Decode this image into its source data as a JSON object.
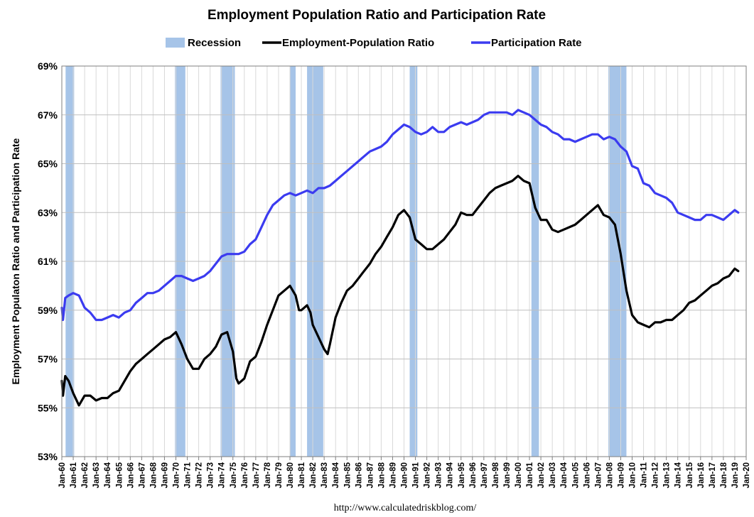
{
  "chart_data": {
    "type": "line",
    "title": "Employment Population Ratio and Participation Rate",
    "ylabel": "Employment Populaton Ratio and Participation Rate",
    "xlabel": "",
    "source": "http://www.calculatedriskblog.com/",
    "ylim": [
      53,
      69
    ],
    "y_ticks": [
      53,
      55,
      57,
      59,
      61,
      63,
      65,
      67,
      69
    ],
    "y_tick_suffix": "%",
    "xlim": [
      1960,
      2020
    ],
    "x_tick_labels": [
      "Jan-60",
      "Jan-61",
      "Jan-62",
      "Jan-63",
      "Jan-64",
      "Jan-65",
      "Jan-66",
      "Jan-67",
      "Jan-68",
      "Jan-69",
      "Jan-70",
      "Jan-71",
      "Jan-72",
      "Jan-73",
      "Jan-74",
      "Jan-75",
      "Jan-76",
      "Jan-77",
      "Jan-78",
      "Jan-79",
      "Jan-80",
      "Jan-81",
      "Jan-82",
      "Jan-83",
      "Jan-84",
      "Jan-85",
      "Jan-86",
      "Jan-87",
      "Jan-88",
      "Jan-89",
      "Jan-90",
      "Jan-91",
      "Jan-92",
      "Jan-93",
      "Jan-94",
      "Jan-95",
      "Jan-96",
      "Jan-97",
      "Jan-98",
      "Jan-99",
      "Jan-00",
      "Jan-01",
      "Jan-02",
      "Jan-03",
      "Jan-04",
      "Jan-05",
      "Jan-06",
      "Jan-07",
      "Jan-08",
      "Jan-09",
      "Jan-10",
      "Jan-11",
      "Jan-12",
      "Jan-13",
      "Jan-14",
      "Jan-15",
      "Jan-16",
      "Jan-17",
      "Jan-18",
      "Jan-19",
      "Jan-20"
    ],
    "grid": true,
    "legend_position": "top-center",
    "legend": [
      {
        "name": "Recession",
        "kind": "band",
        "color": "#a6c4e8"
      },
      {
        "name": "Employment-Population Ratio",
        "kind": "line",
        "color": "#000000"
      },
      {
        "name": "Participation Rate",
        "kind": "line",
        "color": "#3b3bf0"
      }
    ],
    "recessions": [
      [
        1960.33,
        1961.08
      ],
      [
        1969.92,
        1970.83
      ],
      [
        1973.92,
        1975.17
      ],
      [
        1980.0,
        1980.5
      ],
      [
        1981.5,
        1982.92
      ],
      [
        1990.5,
        1991.17
      ],
      [
        2001.17,
        2001.83
      ],
      [
        2007.92,
        2009.5
      ]
    ],
    "series": [
      {
        "name": "Participation Rate",
        "color": "#3b3bf0",
        "points": [
          [
            1960.0,
            59.1
          ],
          [
            1960.1,
            58.6
          ],
          [
            1960.3,
            59.5
          ],
          [
            1960.6,
            59.6
          ],
          [
            1961.0,
            59.7
          ],
          [
            1961.5,
            59.6
          ],
          [
            1962.0,
            59.1
          ],
          [
            1962.5,
            58.9
          ],
          [
            1963.0,
            58.6
          ],
          [
            1963.5,
            58.6
          ],
          [
            1964.0,
            58.7
          ],
          [
            1964.5,
            58.8
          ],
          [
            1965.0,
            58.7
          ],
          [
            1965.5,
            58.9
          ],
          [
            1966.0,
            59.0
          ],
          [
            1966.5,
            59.3
          ],
          [
            1967.0,
            59.5
          ],
          [
            1967.5,
            59.7
          ],
          [
            1968.0,
            59.7
          ],
          [
            1968.5,
            59.8
          ],
          [
            1969.0,
            60.0
          ],
          [
            1969.5,
            60.2
          ],
          [
            1970.0,
            60.4
          ],
          [
            1970.5,
            60.4
          ],
          [
            1971.0,
            60.3
          ],
          [
            1971.5,
            60.2
          ],
          [
            1972.0,
            60.3
          ],
          [
            1972.5,
            60.4
          ],
          [
            1973.0,
            60.6
          ],
          [
            1973.5,
            60.9
          ],
          [
            1974.0,
            61.2
          ],
          [
            1974.5,
            61.3
          ],
          [
            1975.0,
            61.3
          ],
          [
            1975.5,
            61.3
          ],
          [
            1976.0,
            61.4
          ],
          [
            1976.5,
            61.7
          ],
          [
            1977.0,
            61.9
          ],
          [
            1977.5,
            62.4
          ],
          [
            1978.0,
            62.9
          ],
          [
            1978.5,
            63.3
          ],
          [
            1979.0,
            63.5
          ],
          [
            1979.5,
            63.7
          ],
          [
            1980.0,
            63.8
          ],
          [
            1980.5,
            63.7
          ],
          [
            1981.0,
            63.8
          ],
          [
            1981.5,
            63.9
          ],
          [
            1982.0,
            63.8
          ],
          [
            1982.5,
            64.0
          ],
          [
            1983.0,
            64.0
          ],
          [
            1983.5,
            64.1
          ],
          [
            1984.0,
            64.3
          ],
          [
            1984.5,
            64.5
          ],
          [
            1985.0,
            64.7
          ],
          [
            1985.5,
            64.9
          ],
          [
            1986.0,
            65.1
          ],
          [
            1986.5,
            65.3
          ],
          [
            1987.0,
            65.5
          ],
          [
            1987.5,
            65.6
          ],
          [
            1988.0,
            65.7
          ],
          [
            1988.5,
            65.9
          ],
          [
            1989.0,
            66.2
          ],
          [
            1989.5,
            66.4
          ],
          [
            1990.0,
            66.6
          ],
          [
            1990.5,
            66.5
          ],
          [
            1991.0,
            66.3
          ],
          [
            1991.5,
            66.2
          ],
          [
            1992.0,
            66.3
          ],
          [
            1992.5,
            66.5
          ],
          [
            1993.0,
            66.3
          ],
          [
            1993.5,
            66.3
          ],
          [
            1994.0,
            66.5
          ],
          [
            1994.5,
            66.6
          ],
          [
            1995.0,
            66.7
          ],
          [
            1995.5,
            66.6
          ],
          [
            1996.0,
            66.7
          ],
          [
            1996.5,
            66.8
          ],
          [
            1997.0,
            67.0
          ],
          [
            1997.5,
            67.1
          ],
          [
            1998.0,
            67.1
          ],
          [
            1998.5,
            67.1
          ],
          [
            1999.0,
            67.1
          ],
          [
            1999.5,
            67.0
          ],
          [
            2000.0,
            67.2
          ],
          [
            2000.5,
            67.1
          ],
          [
            2001.0,
            67.0
          ],
          [
            2001.5,
            66.8
          ],
          [
            2002.0,
            66.6
          ],
          [
            2002.5,
            66.5
          ],
          [
            2003.0,
            66.3
          ],
          [
            2003.5,
            66.2
          ],
          [
            2004.0,
            66.0
          ],
          [
            2004.5,
            66.0
          ],
          [
            2005.0,
            65.9
          ],
          [
            2005.5,
            66.0
          ],
          [
            2006.0,
            66.1
          ],
          [
            2006.5,
            66.2
          ],
          [
            2007.0,
            66.2
          ],
          [
            2007.5,
            66.0
          ],
          [
            2008.0,
            66.1
          ],
          [
            2008.5,
            66.0
          ],
          [
            2009.0,
            65.7
          ],
          [
            2009.5,
            65.5
          ],
          [
            2010.0,
            64.9
          ],
          [
            2010.5,
            64.8
          ],
          [
            2011.0,
            64.2
          ],
          [
            2011.5,
            64.1
          ],
          [
            2012.0,
            63.8
          ],
          [
            2012.5,
            63.7
          ],
          [
            2013.0,
            63.6
          ],
          [
            2013.5,
            63.4
          ],
          [
            2014.0,
            63.0
          ],
          [
            2014.5,
            62.9
          ],
          [
            2015.0,
            62.8
          ],
          [
            2015.5,
            62.7
          ],
          [
            2016.0,
            62.7
          ],
          [
            2016.5,
            62.9
          ],
          [
            2017.0,
            62.9
          ],
          [
            2017.5,
            62.8
          ],
          [
            2018.0,
            62.7
          ],
          [
            2018.5,
            62.9
          ],
          [
            2019.0,
            63.1
          ],
          [
            2019.3,
            63.0
          ]
        ]
      },
      {
        "name": "Employment-Population Ratio",
        "color": "#000000",
        "points": [
          [
            1960.0,
            56.1
          ],
          [
            1960.1,
            55.5
          ],
          [
            1960.3,
            56.3
          ],
          [
            1960.6,
            56.1
          ],
          [
            1961.0,
            55.6
          ],
          [
            1961.5,
            55.1
          ],
          [
            1962.0,
            55.5
          ],
          [
            1962.5,
            55.5
          ],
          [
            1963.0,
            55.3
          ],
          [
            1963.5,
            55.4
          ],
          [
            1964.0,
            55.4
          ],
          [
            1964.5,
            55.6
          ],
          [
            1965.0,
            55.7
          ],
          [
            1965.5,
            56.1
          ],
          [
            1966.0,
            56.5
          ],
          [
            1966.5,
            56.8
          ],
          [
            1967.0,
            57.0
          ],
          [
            1967.5,
            57.2
          ],
          [
            1968.0,
            57.4
          ],
          [
            1968.5,
            57.6
          ],
          [
            1969.0,
            57.8
          ],
          [
            1969.5,
            57.9
          ],
          [
            1970.0,
            58.1
          ],
          [
            1970.5,
            57.6
          ],
          [
            1971.0,
            57.0
          ],
          [
            1971.5,
            56.6
          ],
          [
            1972.0,
            56.6
          ],
          [
            1972.5,
            57.0
          ],
          [
            1973.0,
            57.2
          ],
          [
            1973.5,
            57.5
          ],
          [
            1974.0,
            58.0
          ],
          [
            1974.5,
            58.1
          ],
          [
            1975.0,
            57.3
          ],
          [
            1975.3,
            56.2
          ],
          [
            1975.5,
            56.0
          ],
          [
            1976.0,
            56.2
          ],
          [
            1976.5,
            56.9
          ],
          [
            1977.0,
            57.1
          ],
          [
            1977.5,
            57.7
          ],
          [
            1978.0,
            58.4
          ],
          [
            1978.5,
            59.0
          ],
          [
            1979.0,
            59.6
          ],
          [
            1979.5,
            59.8
          ],
          [
            1980.0,
            60.0
          ],
          [
            1980.5,
            59.6
          ],
          [
            1980.8,
            59.0
          ],
          [
            1981.0,
            59.0
          ],
          [
            1981.5,
            59.2
          ],
          [
            1981.8,
            58.9
          ],
          [
            1982.0,
            58.4
          ],
          [
            1982.5,
            57.9
          ],
          [
            1983.0,
            57.4
          ],
          [
            1983.3,
            57.2
          ],
          [
            1983.5,
            57.6
          ],
          [
            1984.0,
            58.7
          ],
          [
            1984.5,
            59.3
          ],
          [
            1985.0,
            59.8
          ],
          [
            1985.5,
            60.0
          ],
          [
            1986.0,
            60.3
          ],
          [
            1986.5,
            60.6
          ],
          [
            1987.0,
            60.9
          ],
          [
            1987.5,
            61.3
          ],
          [
            1988.0,
            61.6
          ],
          [
            1988.5,
            62.0
          ],
          [
            1989.0,
            62.4
          ],
          [
            1989.5,
            62.9
          ],
          [
            1990.0,
            63.1
          ],
          [
            1990.5,
            62.8
          ],
          [
            1991.0,
            61.9
          ],
          [
            1991.5,
            61.7
          ],
          [
            1992.0,
            61.5
          ],
          [
            1992.5,
            61.5
          ],
          [
            1993.0,
            61.7
          ],
          [
            1993.5,
            61.9
          ],
          [
            1994.0,
            62.2
          ],
          [
            1994.5,
            62.5
          ],
          [
            1995.0,
            63.0
          ],
          [
            1995.5,
            62.9
          ],
          [
            1996.0,
            62.9
          ],
          [
            1996.5,
            63.2
          ],
          [
            1997.0,
            63.5
          ],
          [
            1997.5,
            63.8
          ],
          [
            1998.0,
            64.0
          ],
          [
            1998.5,
            64.1
          ],
          [
            1999.0,
            64.2
          ],
          [
            1999.5,
            64.3
          ],
          [
            2000.0,
            64.5
          ],
          [
            2000.5,
            64.3
          ],
          [
            2001.0,
            64.2
          ],
          [
            2001.5,
            63.2
          ],
          [
            2002.0,
            62.7
          ],
          [
            2002.5,
            62.7
          ],
          [
            2003.0,
            62.3
          ],
          [
            2003.5,
            62.2
          ],
          [
            2004.0,
            62.3
          ],
          [
            2004.5,
            62.4
          ],
          [
            2005.0,
            62.5
          ],
          [
            2005.5,
            62.7
          ],
          [
            2006.0,
            62.9
          ],
          [
            2006.5,
            63.1
          ],
          [
            2007.0,
            63.3
          ],
          [
            2007.5,
            62.9
          ],
          [
            2008.0,
            62.8
          ],
          [
            2008.5,
            62.5
          ],
          [
            2009.0,
            61.3
          ],
          [
            2009.5,
            59.8
          ],
          [
            2010.0,
            58.8
          ],
          [
            2010.5,
            58.5
          ],
          [
            2011.0,
            58.4
          ],
          [
            2011.5,
            58.3
          ],
          [
            2012.0,
            58.5
          ],
          [
            2012.5,
            58.5
          ],
          [
            2013.0,
            58.6
          ],
          [
            2013.5,
            58.6
          ],
          [
            2014.0,
            58.8
          ],
          [
            2014.5,
            59.0
          ],
          [
            2015.0,
            59.3
          ],
          [
            2015.5,
            59.4
          ],
          [
            2016.0,
            59.6
          ],
          [
            2016.5,
            59.8
          ],
          [
            2017.0,
            60.0
          ],
          [
            2017.5,
            60.1
          ],
          [
            2018.0,
            60.3
          ],
          [
            2018.5,
            60.4
          ],
          [
            2019.0,
            60.7
          ],
          [
            2019.3,
            60.6
          ]
        ]
      }
    ]
  }
}
